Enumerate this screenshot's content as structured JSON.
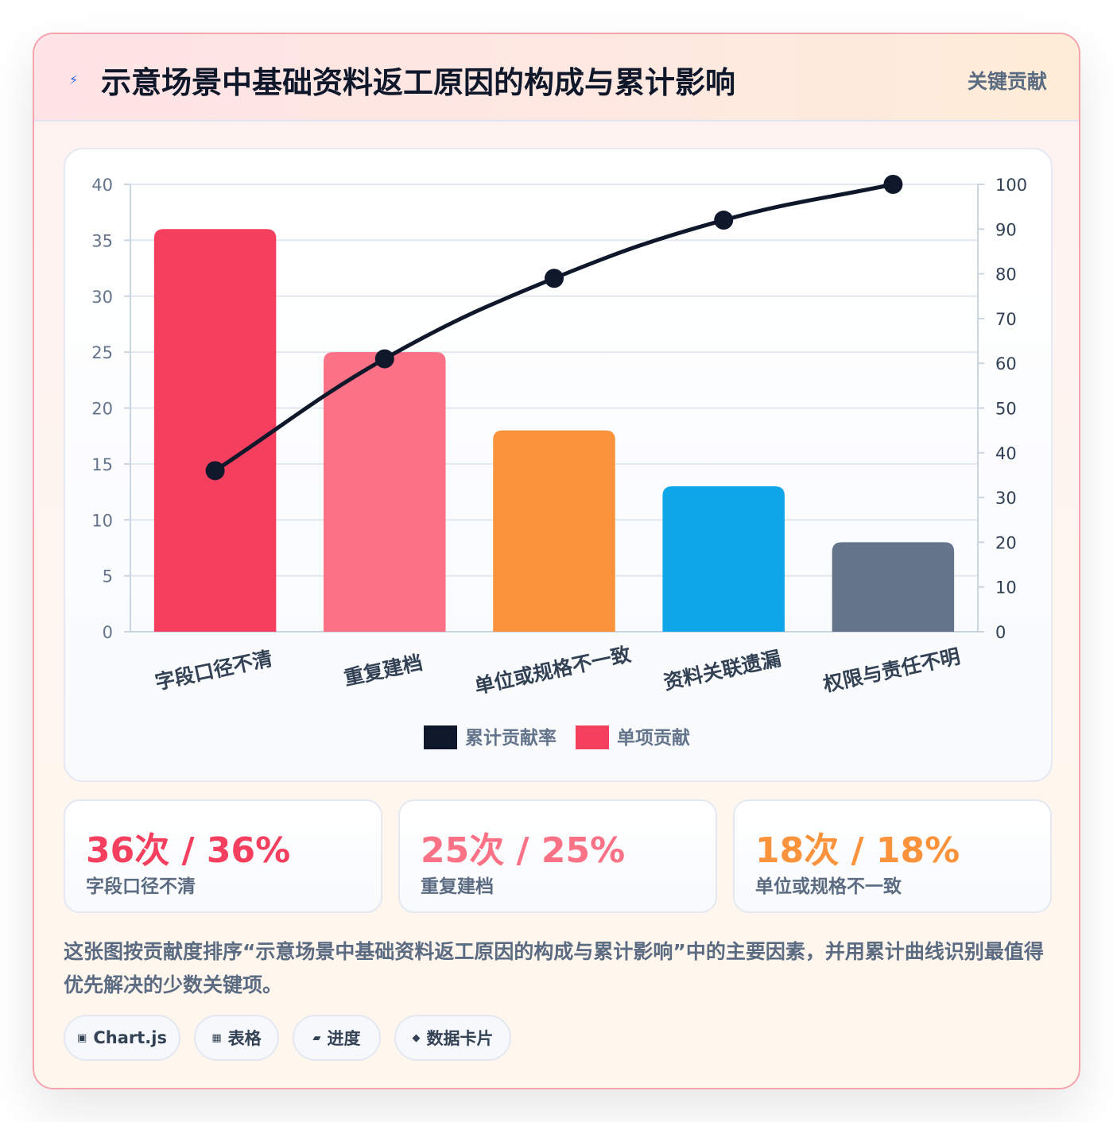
{
  "header": {
    "icon": "lightning-icon",
    "title": "示意场景中基础资料返工原因的构成与累计影响",
    "badge": "关键贡献"
  },
  "chart_data": {
    "type": "bar",
    "categories": [
      "字段口径不清",
      "重复建档",
      "单位或规格不一致",
      "资料关联遗漏",
      "权限与责任不明"
    ],
    "series": [
      {
        "name": "单项贡献",
        "type": "bar",
        "axis": "left",
        "values": [
          36,
          25,
          18,
          13,
          8
        ]
      },
      {
        "name": "累计贡献率",
        "type": "line",
        "axis": "right",
        "values": [
          36,
          61,
          79,
          92,
          100
        ]
      }
    ],
    "bar_colors": [
      "#f43f5e",
      "#fb7185",
      "#fb923c",
      "#0ea5e9",
      "#64748b"
    ],
    "line_color": "#0f172a",
    "ylim_left": [
      0,
      40
    ],
    "yticks_left": [
      0,
      5,
      10,
      15,
      20,
      25,
      30,
      35,
      40
    ],
    "ylim_right": [
      0,
      100
    ],
    "yticks_right": [
      0,
      10,
      20,
      30,
      40,
      50,
      60,
      70,
      80,
      90,
      100
    ],
    "grid": true,
    "legend": [
      {
        "label": "累计贡献率",
        "color": "#0f172a"
      },
      {
        "label": "单项贡献",
        "color": "#f43f5e"
      }
    ],
    "legend_position": "bottom"
  },
  "stats": [
    {
      "value": "36次 / 36%",
      "label": "字段口径不清",
      "color": "#f43f5e"
    },
    {
      "value": "25次 / 25%",
      "label": "重复建档",
      "color": "#fb7185"
    },
    {
      "value": "18次 / 18%",
      "label": "单位或规格不一致",
      "color": "#fb923c"
    }
  ],
  "description": "这张图按贡献度排序“示意场景中基础资料返工原因的构成与累计影响”中的主要因素，并用累计曲线识别最值得优先解决的少数关键项。",
  "tags": [
    {
      "icon": "▣",
      "label": "Chart.js"
    },
    {
      "icon": "▦",
      "label": "表格"
    },
    {
      "icon": "▰",
      "label": "进度"
    },
    {
      "icon": "◆",
      "label": "数据卡片"
    }
  ]
}
